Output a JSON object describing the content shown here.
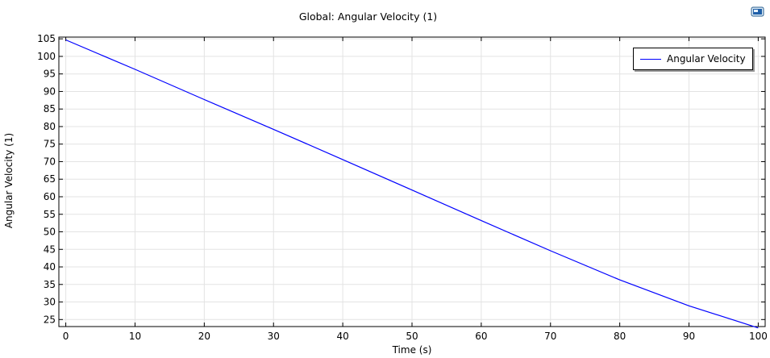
{
  "chart_data": {
    "type": "line",
    "title": "Global: Angular Velocity (1)",
    "xlabel": "Time (s)",
    "ylabel": "Angular Velocity (1)",
    "xlim": [
      -1,
      101
    ],
    "ylim": [
      23,
      105.5
    ],
    "xticks": [
      0,
      10,
      20,
      30,
      40,
      50,
      60,
      70,
      80,
      90,
      100
    ],
    "yticks": [
      25,
      30,
      35,
      40,
      45,
      50,
      55,
      60,
      65,
      70,
      75,
      80,
      85,
      90,
      95,
      100,
      105
    ],
    "grid": true,
    "legend": {
      "placement": "top-right"
    },
    "series": [
      {
        "name": "Angular Velocity",
        "color": "#0000ff",
        "x": [
          0,
          10,
          20,
          30,
          40,
          50,
          60,
          70,
          80,
          90,
          100
        ],
        "y": [
          104.7,
          96.3,
          87.7,
          79.2,
          70.6,
          61.9,
          53.2,
          44.6,
          36.3,
          28.9,
          22.6
        ]
      }
    ]
  },
  "toolbar": {
    "corner_icon": "monitor-icon"
  }
}
